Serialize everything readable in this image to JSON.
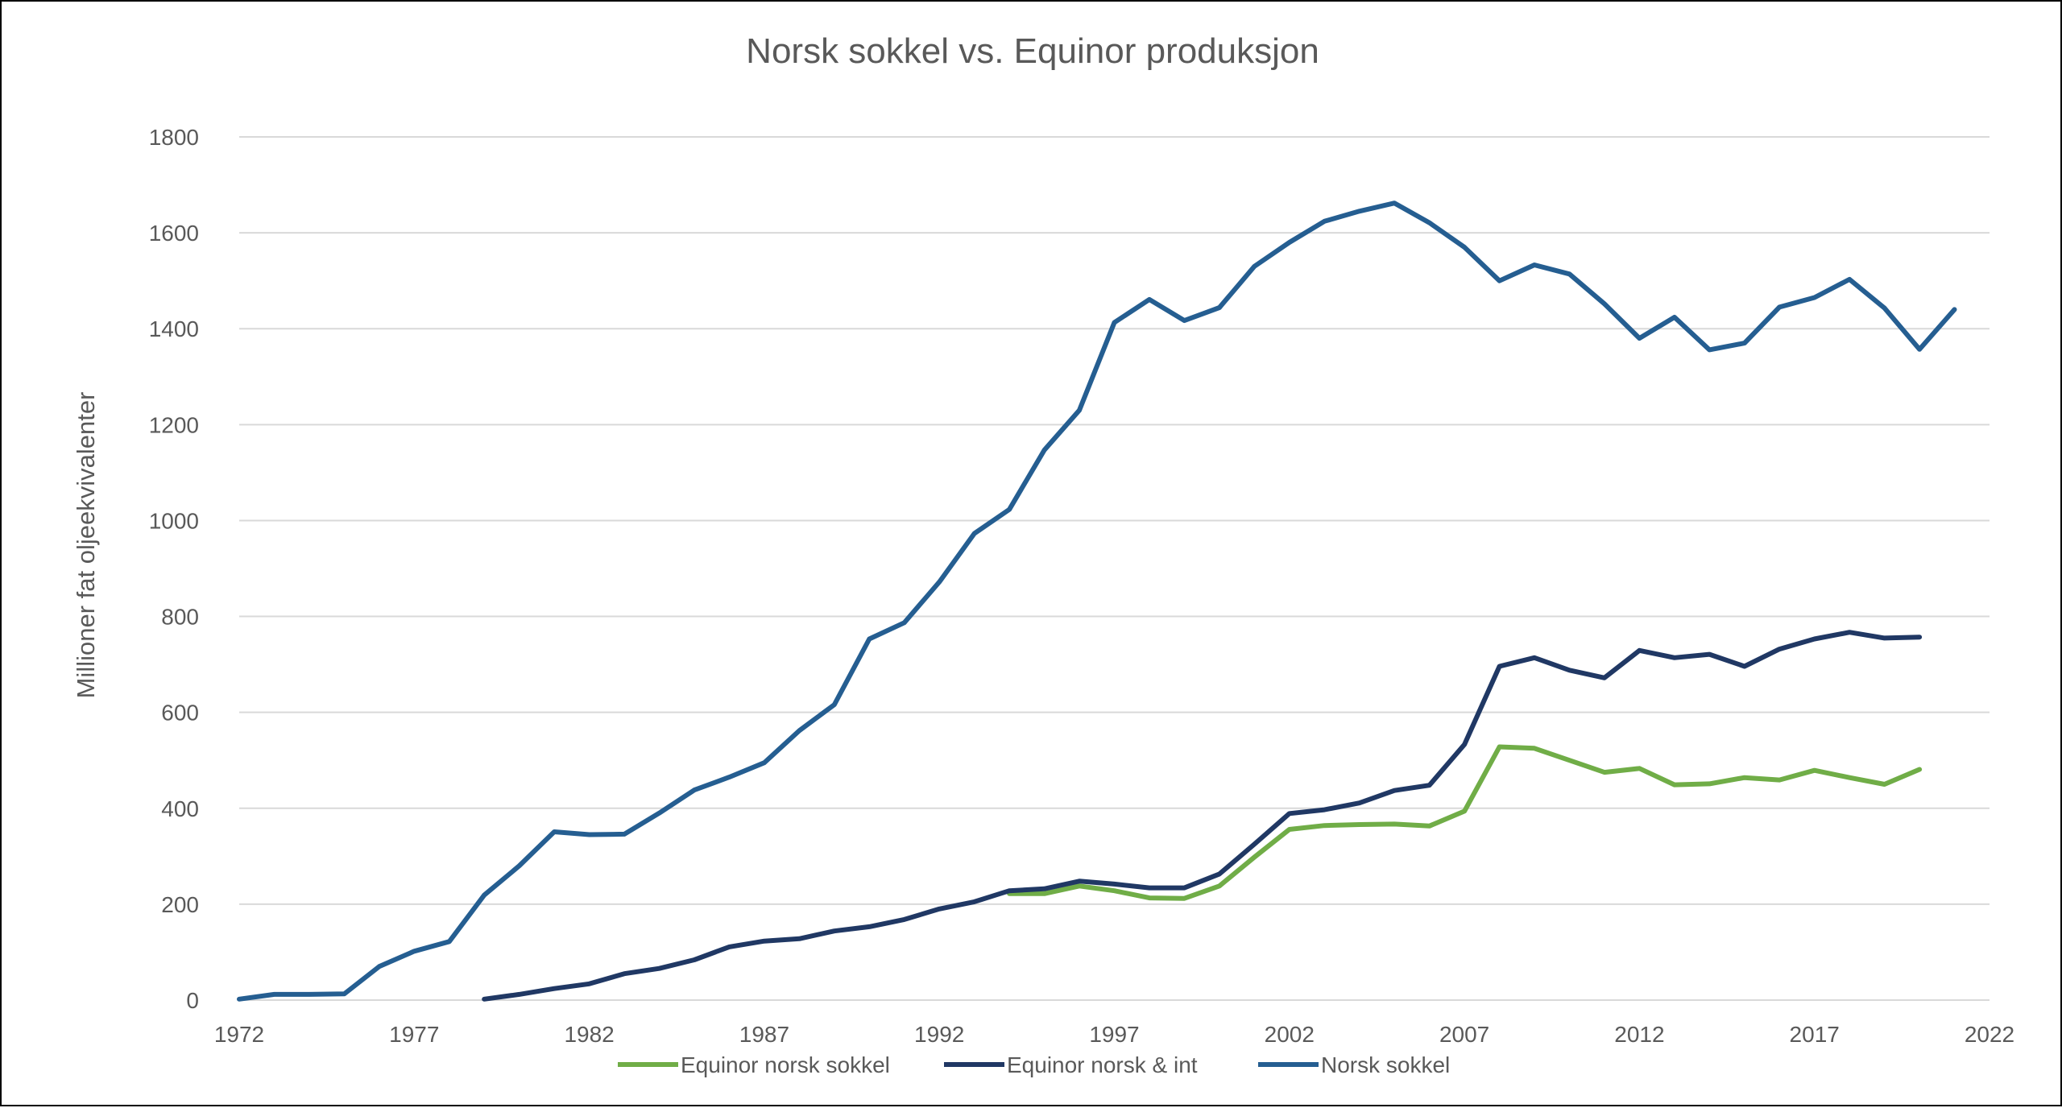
{
  "chart_data": {
    "type": "line",
    "title": "Norsk sokkel vs. Equinor produksjon",
    "xlabel": "",
    "ylabel": "Millioner fat oljeekvivalenter",
    "xlim": [
      1972,
      2022
    ],
    "ylim": [
      0,
      1800
    ],
    "x_ticks": [
      1972,
      1977,
      1982,
      1987,
      1992,
      1997,
      2002,
      2007,
      2012,
      2017,
      2022
    ],
    "y_ticks": [
      0,
      200,
      400,
      600,
      800,
      1000,
      1200,
      1400,
      1600,
      1800
    ],
    "grid": true,
    "legend_position": "bottom",
    "series": [
      {
        "name": "Equinor norsk sokkel",
        "color": "#70ad47",
        "x": [
          1994,
          1995,
          1996,
          1997,
          1998,
          1999,
          2000,
          2001,
          2002,
          2003,
          2004,
          2005,
          2006,
          2007,
          2008,
          2009,
          2010,
          2011,
          2012,
          2013,
          2014,
          2015,
          2016,
          2017,
          2018,
          2019,
          2020
        ],
        "values": [
          222,
          222,
          238,
          228,
          213,
          212,
          238,
          298,
          356,
          364,
          366,
          367,
          363,
          394,
          528,
          525,
          500,
          475,
          483,
          449,
          451,
          464,
          459,
          479,
          464,
          450,
          481
        ]
      },
      {
        "name": "Equinor norsk & int",
        "color": "#203864",
        "x": [
          1979,
          1980,
          1981,
          1982,
          1983,
          1984,
          1985,
          1986,
          1987,
          1988,
          1989,
          1990,
          1991,
          1992,
          1993,
          1994,
          1995,
          1996,
          1997,
          1998,
          1999,
          2000,
          2001,
          2002,
          2003,
          2004,
          2005,
          2006,
          2007,
          2008,
          2009,
          2010,
          2011,
          2012,
          2013,
          2014,
          2015,
          2016,
          2017,
          2018,
          2019,
          2020
        ],
        "values": [
          2,
          12,
          24,
          34,
          55,
          66,
          84,
          111,
          123,
          128,
          144,
          153,
          168,
          190,
          205,
          228,
          232,
          248,
          242,
          234,
          234,
          263,
          325,
          389,
          397,
          411,
          437,
          448,
          533,
          696,
          714,
          688,
          672,
          729,
          714,
          721,
          696,
          732,
          753,
          767,
          755,
          757
        ]
      },
      {
        "name": "Norsk sokkel",
        "color": "#255e91",
        "x": [
          1972,
          1973,
          1974,
          1975,
          1976,
          1977,
          1978,
          1979,
          1980,
          1981,
          1982,
          1983,
          1984,
          1985,
          1986,
          1987,
          1988,
          1989,
          1990,
          1991,
          1992,
          1993,
          1994,
          1995,
          1996,
          1997,
          1998,
          1999,
          2000,
          2001,
          2002,
          2003,
          2004,
          2005,
          2006,
          2007,
          2008,
          2009,
          2010,
          2011,
          2012,
          2013,
          2014,
          2015,
          2016,
          2017,
          2018,
          2019,
          2020,
          2021
        ],
        "values": [
          2,
          12,
          12,
          13,
          70,
          102,
          122,
          219,
          280,
          351,
          345,
          346,
          390,
          438,
          465,
          495,
          562,
          616,
          753,
          787,
          872,
          973,
          1023,
          1147,
          1230,
          1413,
          1461,
          1417,
          1444,
          1530,
          1580,
          1624,
          1645,
          1662,
          1621,
          1570,
          1500,
          1533,
          1514,
          1452,
          1380,
          1424,
          1356,
          1370,
          1445,
          1465,
          1503,
          1443,
          1357,
          1440
        ]
      }
    ]
  }
}
